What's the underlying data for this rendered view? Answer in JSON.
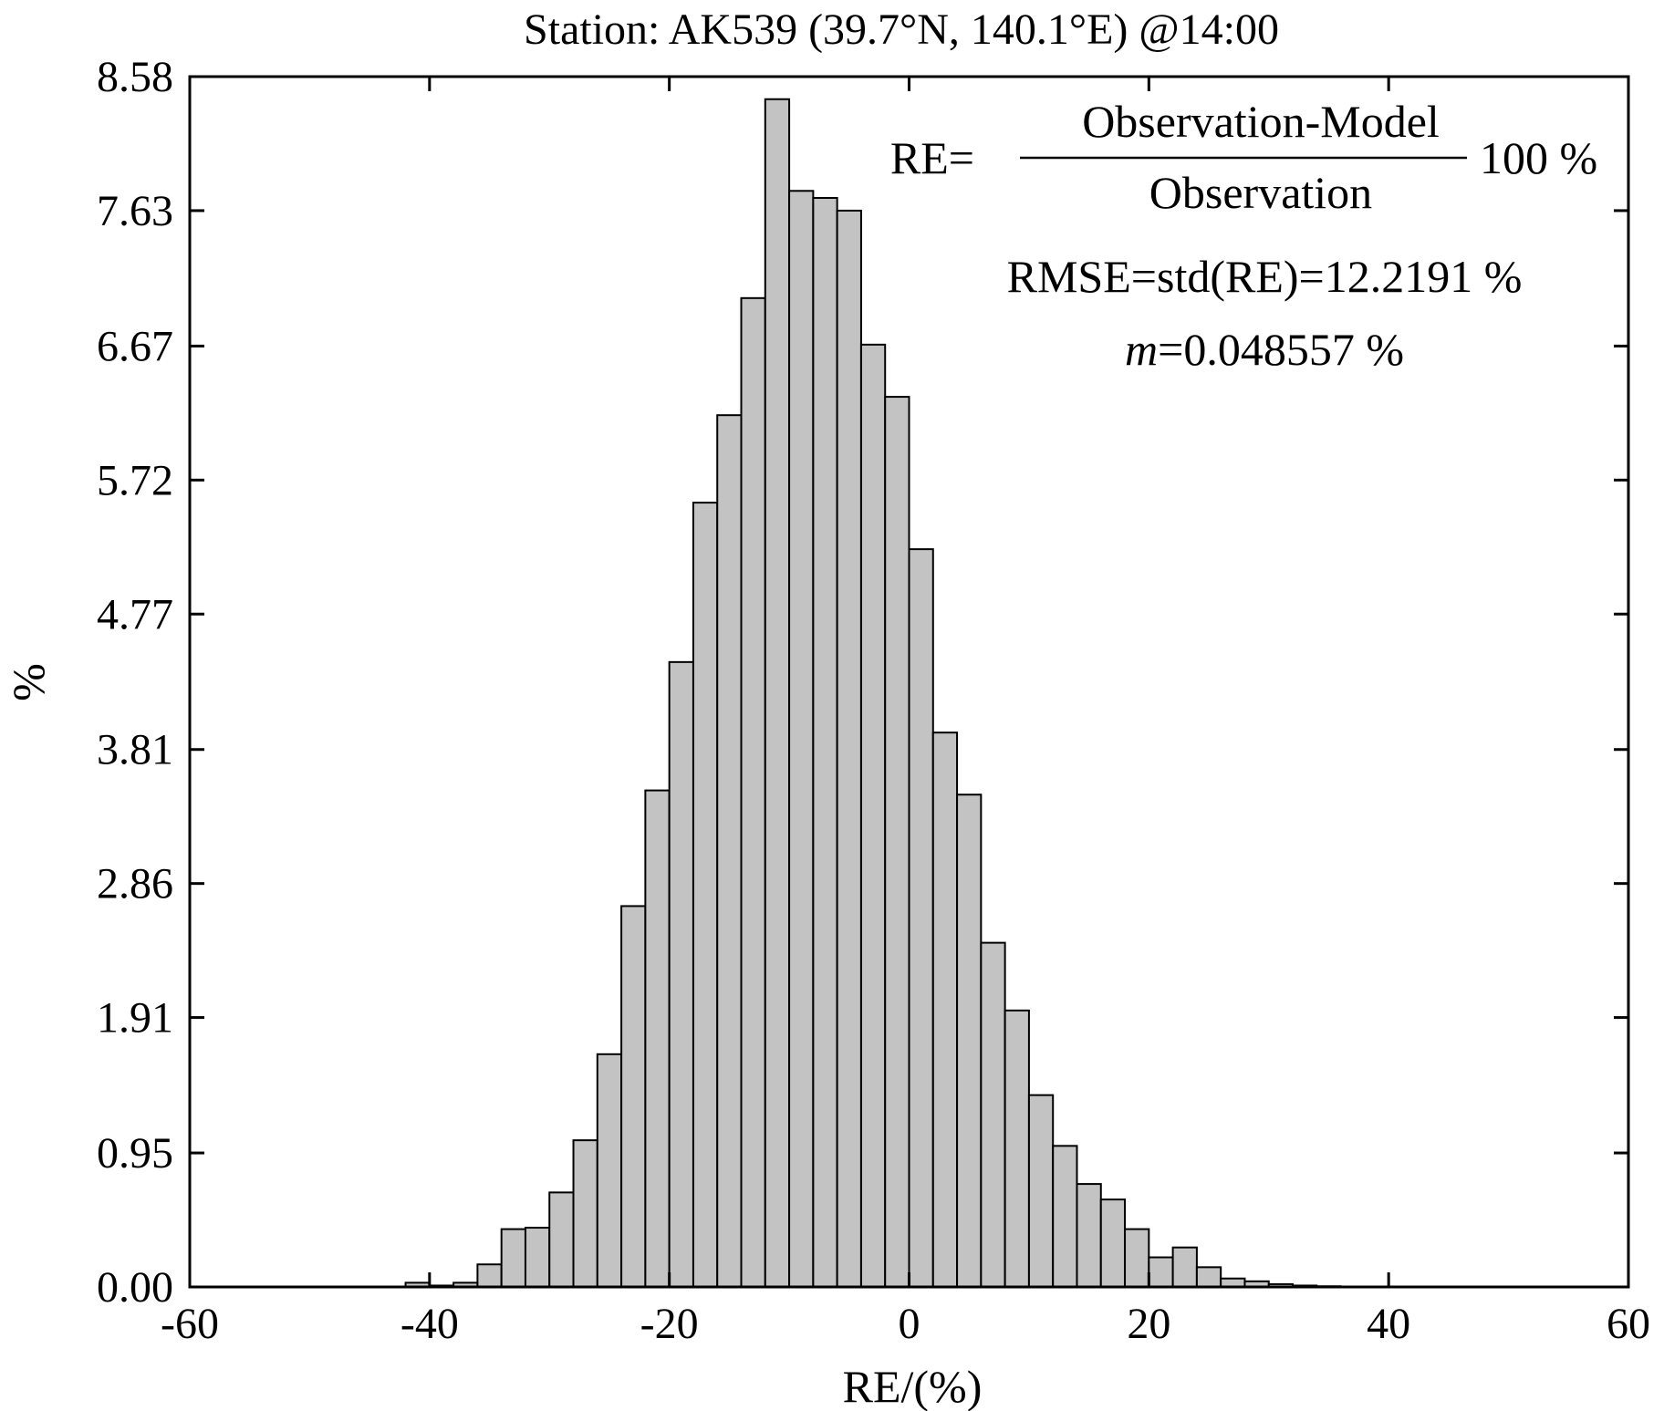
{
  "chart_data": {
    "type": "bar",
    "title": "Station: AK539 (39.7°N, 140.1°E) @14:00",
    "xlabel": "RE/(%)",
    "ylabel": "%",
    "xlim": [
      -60,
      60
    ],
    "ylim": [
      0,
      8.58
    ],
    "xticks": [
      "-60",
      "-40",
      "-20",
      "0",
      "20",
      "40",
      "60"
    ],
    "yticks": [
      "0.00",
      "0.95",
      "1.91",
      "2.86",
      "3.81",
      "4.77",
      "5.72",
      "6.67",
      "7.63",
      "8.58"
    ],
    "grid": false,
    "bin_width": 2,
    "bins": [
      {
        "x": -41,
        "value": 0.03
      },
      {
        "x": -39,
        "value": 0.01
      },
      {
        "x": -37,
        "value": 0.03
      },
      {
        "x": -35,
        "value": 0.16
      },
      {
        "x": -33,
        "value": 0.41
      },
      {
        "x": -31,
        "value": 0.42
      },
      {
        "x": -29,
        "value": 0.67
      },
      {
        "x": -27,
        "value": 1.04
      },
      {
        "x": -25,
        "value": 1.65
      },
      {
        "x": -23,
        "value": 2.7
      },
      {
        "x": -21,
        "value": 3.52
      },
      {
        "x": -19,
        "value": 4.43
      },
      {
        "x": -17,
        "value": 5.56
      },
      {
        "x": -15,
        "value": 6.18
      },
      {
        "x": -13,
        "value": 7.01
      },
      {
        "x": -11,
        "value": 8.42
      },
      {
        "x": -9,
        "value": 7.77
      },
      {
        "x": -7,
        "value": 7.72
      },
      {
        "x": -5,
        "value": 7.63
      },
      {
        "x": -3,
        "value": 6.68
      },
      {
        "x": -1,
        "value": 6.31
      },
      {
        "x": 1,
        "value": 5.23
      },
      {
        "x": 3,
        "value": 3.93
      },
      {
        "x": 5,
        "value": 3.49
      },
      {
        "x": 7,
        "value": 2.44
      },
      {
        "x": 9,
        "value": 1.96
      },
      {
        "x": 11,
        "value": 1.36
      },
      {
        "x": 13,
        "value": 1.0
      },
      {
        "x": 15,
        "value": 0.73
      },
      {
        "x": 17,
        "value": 0.62
      },
      {
        "x": 19,
        "value": 0.41
      },
      {
        "x": 21,
        "value": 0.21
      },
      {
        "x": 23,
        "value": 0.28
      },
      {
        "x": 25,
        "value": 0.14
      },
      {
        "x": 27,
        "value": 0.06
      },
      {
        "x": 29,
        "value": 0.04
      },
      {
        "x": 31,
        "value": 0.02
      },
      {
        "x": 33,
        "value": 0.01
      },
      {
        "x": 35,
        "value": 0.005
      }
    ],
    "annotations": {
      "re_lhs": "RE=",
      "numerator": "Observation-Model",
      "denominator": "Observation",
      "re_rhs": "100 %",
      "rmse": "RMSE=std(RE)=12.2191 %",
      "m_symbol": "m",
      "m_value": "=0.048557 %"
    }
  }
}
